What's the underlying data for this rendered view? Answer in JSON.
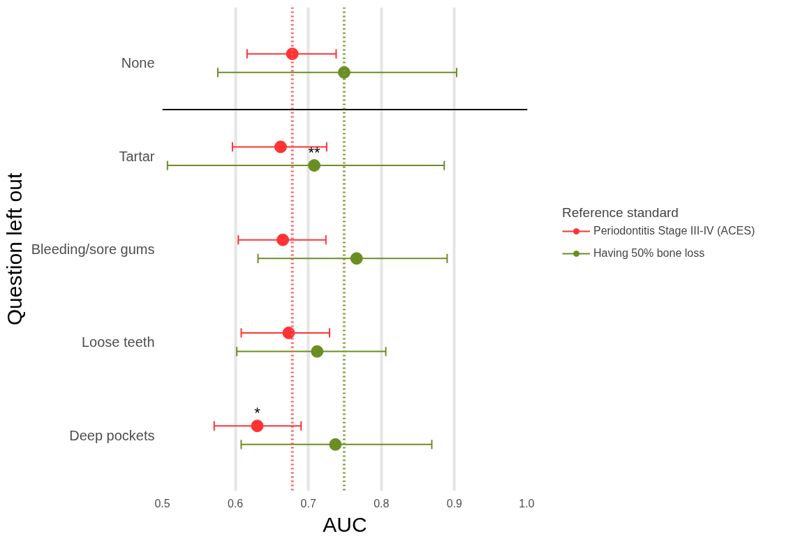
{
  "chart_data": {
    "type": "scatter",
    "orientation": "horizontal",
    "xlabel": "AUC",
    "ylabel": "Question left out",
    "legend_title": "Reference standard",
    "categories": [
      "None",
      "Tartar",
      "Bleeding/sore gums",
      "Loose teeth",
      "Deep pockets"
    ],
    "series": [
      {
        "name": "Periodontitis Stage III-IV (ACES)",
        "color": "#ff3333",
        "values": [
          0.678,
          0.662,
          0.665,
          0.673,
          0.63
        ],
        "errors": [
          [
            0.616,
            0.738
          ],
          [
            0.596,
            0.725
          ],
          [
            0.604,
            0.724
          ],
          [
            0.608,
            0.729
          ],
          [
            0.571,
            0.69
          ]
        ]
      },
      {
        "name": "Having 50% bone loss",
        "color": "#6b8e23",
        "values": [
          0.749,
          0.708,
          0.766,
          0.712,
          0.737
        ],
        "errors": [
          [
            0.576,
            0.903
          ],
          [
            0.507,
            0.886
          ],
          [
            0.631,
            0.89
          ],
          [
            0.602,
            0.806
          ],
          [
            0.608,
            0.869
          ]
        ]
      }
    ],
    "ref_lines": [
      {
        "axis": "x",
        "value": 0.678,
        "color": "#ff5555",
        "line_style": "dotted"
      },
      {
        "axis": "x",
        "value": 0.749,
        "color": "#7f9a3a",
        "line_style": "dotted"
      },
      {
        "axis": "y",
        "value": "None",
        "color": "#000000",
        "line_style": "solid"
      }
    ],
    "annotations": [
      {
        "text": "**",
        "x": 0.708,
        "y": "Tartar"
      },
      {
        "text": "*",
        "x": 0.63,
        "y": "Deep pockets"
      }
    ],
    "xlim": [
      0.5,
      1.0
    ],
    "xticks": [
      0.5,
      0.6,
      0.7,
      0.8,
      0.9,
      {
        "value": 1.0,
        "label": "1.0"
      }
    ],
    "grid": "x",
    "legend": "right",
    "marker": "circle"
  }
}
